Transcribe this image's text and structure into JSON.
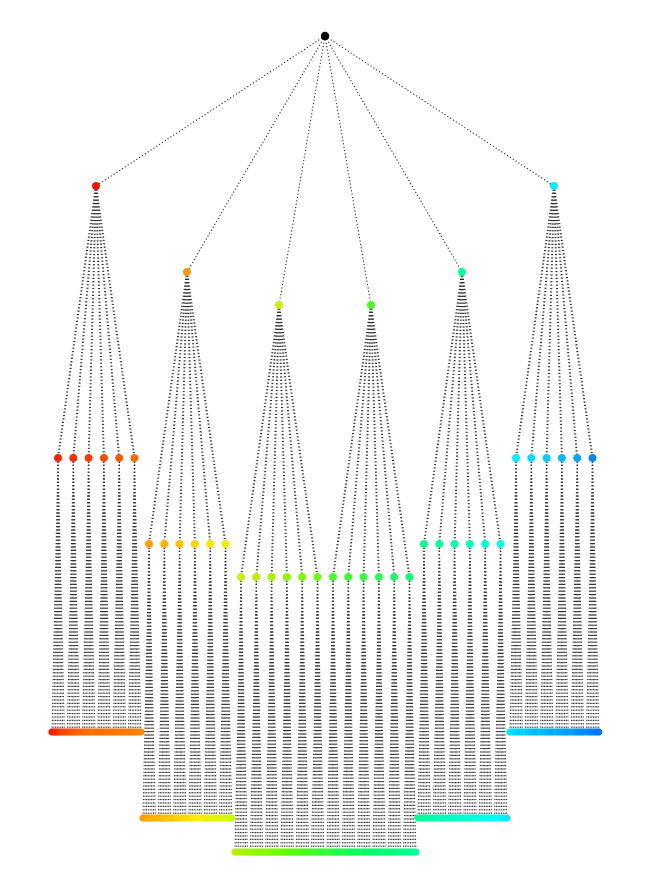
{
  "diagram": {
    "type": "tree",
    "root": {
      "id": "root",
      "color": "#000000"
    },
    "branches": [
      {
        "id": "b1",
        "color": "#ee1100",
        "children": [
          {
            "id": "b1-1",
            "color": "#ff2200",
            "leaf_colors": [
              "#ff1100",
              "#ff1a00",
              "#ff2200",
              "#ff2800",
              "#ff3000",
              "#ff3800",
              "#ff4000",
              "#ff4600"
            ]
          },
          {
            "id": "b1-2",
            "color": "#ff2a00",
            "leaf_colors": [
              "#ff4400",
              "#ff4a00",
              "#ff5000",
              "#ff5400",
              "#ff5800",
              "#ff5c00",
              "#ff6000",
              "#ff6400"
            ]
          },
          {
            "id": "b1-3",
            "color": "#ff3a00",
            "leaf_colors": [
              "#ff5e00",
              "#ff6200",
              "#ff6600",
              "#ff6a00",
              "#ff6e00",
              "#ff7000",
              "#ff7200",
              "#ff7400"
            ]
          },
          {
            "id": "b1-4",
            "color": "#ff4a00",
            "leaf_colors": [
              "#ff6600",
              "#ff6a00",
              "#ff6c00",
              "#ff6e00",
              "#ff7000",
              "#ff7200",
              "#ff7400",
              "#ff7600"
            ]
          },
          {
            "id": "b1-5",
            "color": "#ff5a00",
            "leaf_colors": [
              "#ff7000",
              "#ff7200",
              "#ff7400",
              "#ff7600",
              "#ff7800",
              "#ff7a00",
              "#ff7c00",
              "#ff7e00"
            ]
          },
          {
            "id": "b1-6",
            "color": "#ff6a00",
            "leaf_colors": [
              "#ff7800",
              "#ff7a00",
              "#ff7c00",
              "#ff7e00",
              "#ff8000",
              "#ff8200",
              "#ff8400",
              "#ff8800"
            ]
          }
        ]
      },
      {
        "id": "b2",
        "color": "#ff9900",
        "children": [
          {
            "id": "b2-1",
            "color": "#ffa000",
            "leaf_colors": [
              "#ff9a00",
              "#ff9e00",
              "#ffa200",
              "#ffa600",
              "#ffaa00",
              "#ffae00",
              "#ffb200",
              "#ffb400"
            ]
          },
          {
            "id": "b2-2",
            "color": "#ffb000",
            "leaf_colors": [
              "#ffb000",
              "#ffb400",
              "#ffb800",
              "#ffbc00",
              "#ffc000",
              "#ffc400",
              "#ffc600",
              "#ffc800"
            ]
          },
          {
            "id": "b2-3",
            "color": "#ffc000",
            "leaf_colors": [
              "#ffc400",
              "#ffc800",
              "#ffcc00",
              "#ffd000",
              "#ffd400",
              "#ffd800",
              "#ffda00",
              "#ffdc00"
            ]
          },
          {
            "id": "b2-4",
            "color": "#ffd400",
            "leaf_colors": [
              "#ffd800",
              "#ffdc00",
              "#ffe000",
              "#ffe400",
              "#ffe800",
              "#ffec00",
              "#ffee00",
              "#fff000"
            ]
          },
          {
            "id": "b2-5",
            "color": "#ffe400",
            "leaf_colors": [
              "#fbe800",
              "#f7ec00",
              "#f3ee00",
              "#f0f000",
              "#ecf200",
              "#e8f400",
              "#e4f600",
              "#e0f800"
            ]
          },
          {
            "id": "b2-6",
            "color": "#eeee00",
            "leaf_colors": [
              "#e4f400",
              "#e0f600",
              "#dcf800",
              "#d8fa00",
              "#d4fb00",
              "#d0fc00",
              "#ccfd00",
              "#c8fe00"
            ]
          }
        ]
      },
      {
        "id": "b3",
        "color": "#ccee00",
        "children": [
          {
            "id": "b3-1",
            "color": "#ccee00",
            "leaf_colors": [
              "#bbee00",
              "#b8ef00",
              "#b4f000",
              "#b0f100",
              "#acf200",
              "#a8f300",
              "#a4f400",
              "#a0f500"
            ]
          },
          {
            "id": "b3-2",
            "color": "#b8f000",
            "leaf_colors": [
              "#a0f500",
              "#9cf600",
              "#98f700",
              "#94f800",
              "#90f900",
              "#8cfa00",
              "#88fb00",
              "#84fc00"
            ]
          },
          {
            "id": "b3-3",
            "color": "#a4f400",
            "leaf_colors": [
              "#88fb00",
              "#84fc00",
              "#80fd00",
              "#7cfd00",
              "#78fe00",
              "#74fe00",
              "#70ff00",
              "#6cff00"
            ]
          },
          {
            "id": "b3-4",
            "color": "#90f800",
            "leaf_colors": [
              "#70ff00",
              "#6cff00",
              "#68ff00",
              "#64ff00",
              "#60ff00",
              "#5cff04",
              "#58ff08",
              "#54ff0c"
            ]
          },
          {
            "id": "b3-5",
            "color": "#7cfc00",
            "leaf_colors": [
              "#5cff08",
              "#58ff0c",
              "#54ff10",
              "#50ff14",
              "#4cff18",
              "#48ff1c",
              "#44ff20",
              "#40ff24"
            ]
          },
          {
            "id": "b3-6",
            "color": "#68ff10",
            "leaf_colors": [
              "#48ff1c",
              "#44ff20",
              "#40ff24",
              "#3cff28",
              "#38ff2c",
              "#34ff30",
              "#30ff34",
              "#2cff38"
            ]
          }
        ]
      },
      {
        "id": "b4",
        "color": "#44ff22",
        "children": [
          {
            "id": "b4-1",
            "color": "#44ff22",
            "leaf_colors": [
              "#34ff30",
              "#30ff34",
              "#2cff38",
              "#28ff3c",
              "#24ff40",
              "#20ff44",
              "#1cff48",
              "#18ff4c"
            ]
          },
          {
            "id": "b4-2",
            "color": "#3aff30",
            "leaf_colors": [
              "#24ff40",
              "#20ff44",
              "#1cff48",
              "#18ff4c",
              "#14ff50",
              "#10ff54",
              "#0cff58",
              "#08ff5c"
            ]
          },
          {
            "id": "b4-3",
            "color": "#30ff40",
            "leaf_colors": [
              "#14ff50",
              "#10ff54",
              "#0cff58",
              "#08ff5c",
              "#04ff60",
              "#00ff64",
              "#00ff68",
              "#00ff6c"
            ]
          },
          {
            "id": "b4-4",
            "color": "#26ff50",
            "leaf_colors": [
              "#04ff60",
              "#00ff64",
              "#00ff68",
              "#00ff6c",
              "#00ff70",
              "#00ff74",
              "#00ff78",
              "#00ff7c"
            ]
          },
          {
            "id": "b4-5",
            "color": "#1cff60",
            "leaf_colors": [
              "#00ff6c",
              "#00ff70",
              "#00ff74",
              "#00ff78",
              "#00ff7c",
              "#00ff80",
              "#00ff84",
              "#00ff88"
            ]
          },
          {
            "id": "b4-6",
            "color": "#12ff70",
            "leaf_colors": [
              "#00ff78",
              "#00ff7c",
              "#00ff80",
              "#00ff84",
              "#00ff88",
              "#00ff8c",
              "#00ff90",
              "#00ff94"
            ]
          }
        ]
      },
      {
        "id": "b5",
        "color": "#00ff99",
        "children": [
          {
            "id": "b5-1",
            "color": "#00ff8a",
            "leaf_colors": [
              "#00ff8c",
              "#00ff90",
              "#00ff94",
              "#00ff98",
              "#00ff9c",
              "#00ffa0",
              "#00ffa4",
              "#00ffa8"
            ]
          },
          {
            "id": "b5-2",
            "color": "#00ff9c",
            "leaf_colors": [
              "#00ffa0",
              "#00ffa4",
              "#00ffa8",
              "#00ffac",
              "#00ffb0",
              "#00ffb4",
              "#00ffb8",
              "#00ffbc"
            ]
          },
          {
            "id": "b5-3",
            "color": "#00ffae",
            "leaf_colors": [
              "#00ffb4",
              "#00ffb8",
              "#00ffbc",
              "#00ffc0",
              "#00ffc4",
              "#00ffc8",
              "#00ffcc",
              "#00ffd0"
            ]
          },
          {
            "id": "b5-4",
            "color": "#00ffc0",
            "leaf_colors": [
              "#00ffc8",
              "#00ffcc",
              "#00ffd0",
              "#00ffd4",
              "#00ffd8",
              "#00ffdc",
              "#00ffe0",
              "#00ffe4"
            ]
          },
          {
            "id": "b5-5",
            "color": "#00ffd2",
            "leaf_colors": [
              "#00ffdc",
              "#00ffe0",
              "#00ffe4",
              "#00ffe8",
              "#00ffec",
              "#00fff0",
              "#00fff4",
              "#00fff8"
            ]
          },
          {
            "id": "b5-6",
            "color": "#00ffe4",
            "leaf_colors": [
              "#00fff0",
              "#00fff4",
              "#00fff8",
              "#00fcfc",
              "#00f8ff",
              "#00f4ff",
              "#00f0ff",
              "#00ecff"
            ]
          }
        ]
      },
      {
        "id": "b6",
        "color": "#00eeff",
        "children": [
          {
            "id": "b6-1",
            "color": "#00eeff",
            "leaf_colors": [
              "#00e8ff",
              "#00e4ff",
              "#00e0ff",
              "#00dcff",
              "#00d8ff",
              "#00d4ff",
              "#00d0ff",
              "#00ccff"
            ]
          },
          {
            "id": "b6-2",
            "color": "#00ddff",
            "leaf_colors": [
              "#00d4ff",
              "#00d0ff",
              "#00ccff",
              "#00c8ff",
              "#00c4ff",
              "#00c0ff",
              "#00bcff",
              "#00b8ff"
            ]
          },
          {
            "id": "b6-3",
            "color": "#00ccff",
            "leaf_colors": [
              "#00c4ff",
              "#00c0ff",
              "#00bcff",
              "#00b8ff",
              "#00b4ff",
              "#00b0ff",
              "#00acff",
              "#00a8ff"
            ]
          },
          {
            "id": "b6-4",
            "color": "#00bbff",
            "leaf_colors": [
              "#00b4ff",
              "#00b0ff",
              "#00acff",
              "#00a8ff",
              "#00a4ff",
              "#00a0ff",
              "#009cff",
              "#0098ff"
            ]
          },
          {
            "id": "b6-5",
            "color": "#00aaff",
            "leaf_colors": [
              "#00a4ff",
              "#00a0ff",
              "#009cff",
              "#0098ff",
              "#0094ff",
              "#0090ff",
              "#008cff",
              "#0088ff"
            ]
          },
          {
            "id": "b6-6",
            "color": "#0088ff",
            "leaf_colors": [
              "#0090ff",
              "#008cff",
              "#0088ff",
              "#0084ff",
              "#0080ff",
              "#007cff",
              "#0078ff",
              "#0074ff"
            ]
          }
        ]
      }
    ]
  }
}
